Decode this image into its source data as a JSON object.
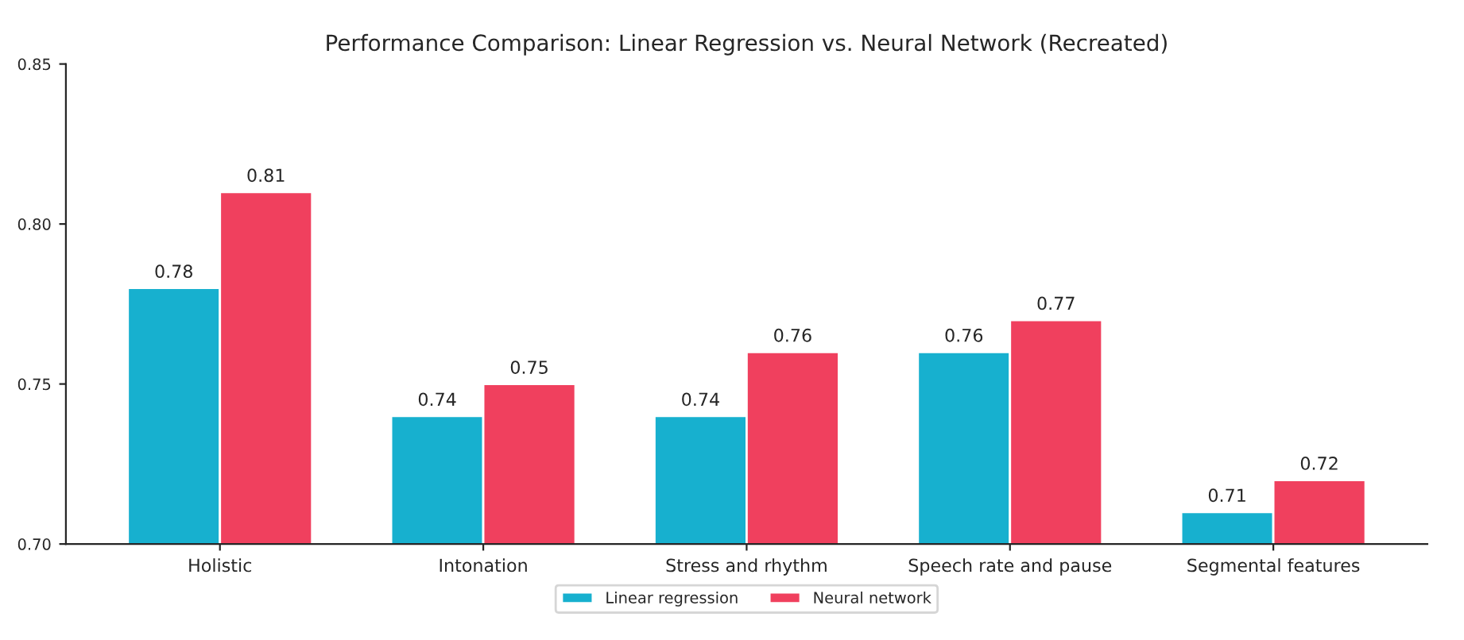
{
  "chart_data": {
    "type": "bar",
    "title": "Performance Comparison: Linear Regression vs. Neural Network (Recreated)",
    "categories": [
      "Holistic",
      "Intonation",
      "Stress and rhythm",
      "Speech rate and pause",
      "Segmental features"
    ],
    "series": [
      {
        "name": "Linear regression",
        "color": "#17b0cf",
        "values": [
          0.78,
          0.74,
          0.74,
          0.76,
          0.71
        ]
      },
      {
        "name": "Neural network",
        "color": "#f0405e",
        "values": [
          0.81,
          0.75,
          0.76,
          0.77,
          0.72
        ]
      }
    ],
    "ylim": [
      0.7,
      0.85
    ],
    "yticks": [
      {
        "value": 0.7,
        "label": "0.70"
      },
      {
        "value": 0.75,
        "label": "0.75"
      },
      {
        "value": 0.8,
        "label": "0.80"
      },
      {
        "value": 0.85,
        "label": "0.85"
      }
    ],
    "data_labels": true,
    "grid": false,
    "legend": "bottom"
  }
}
